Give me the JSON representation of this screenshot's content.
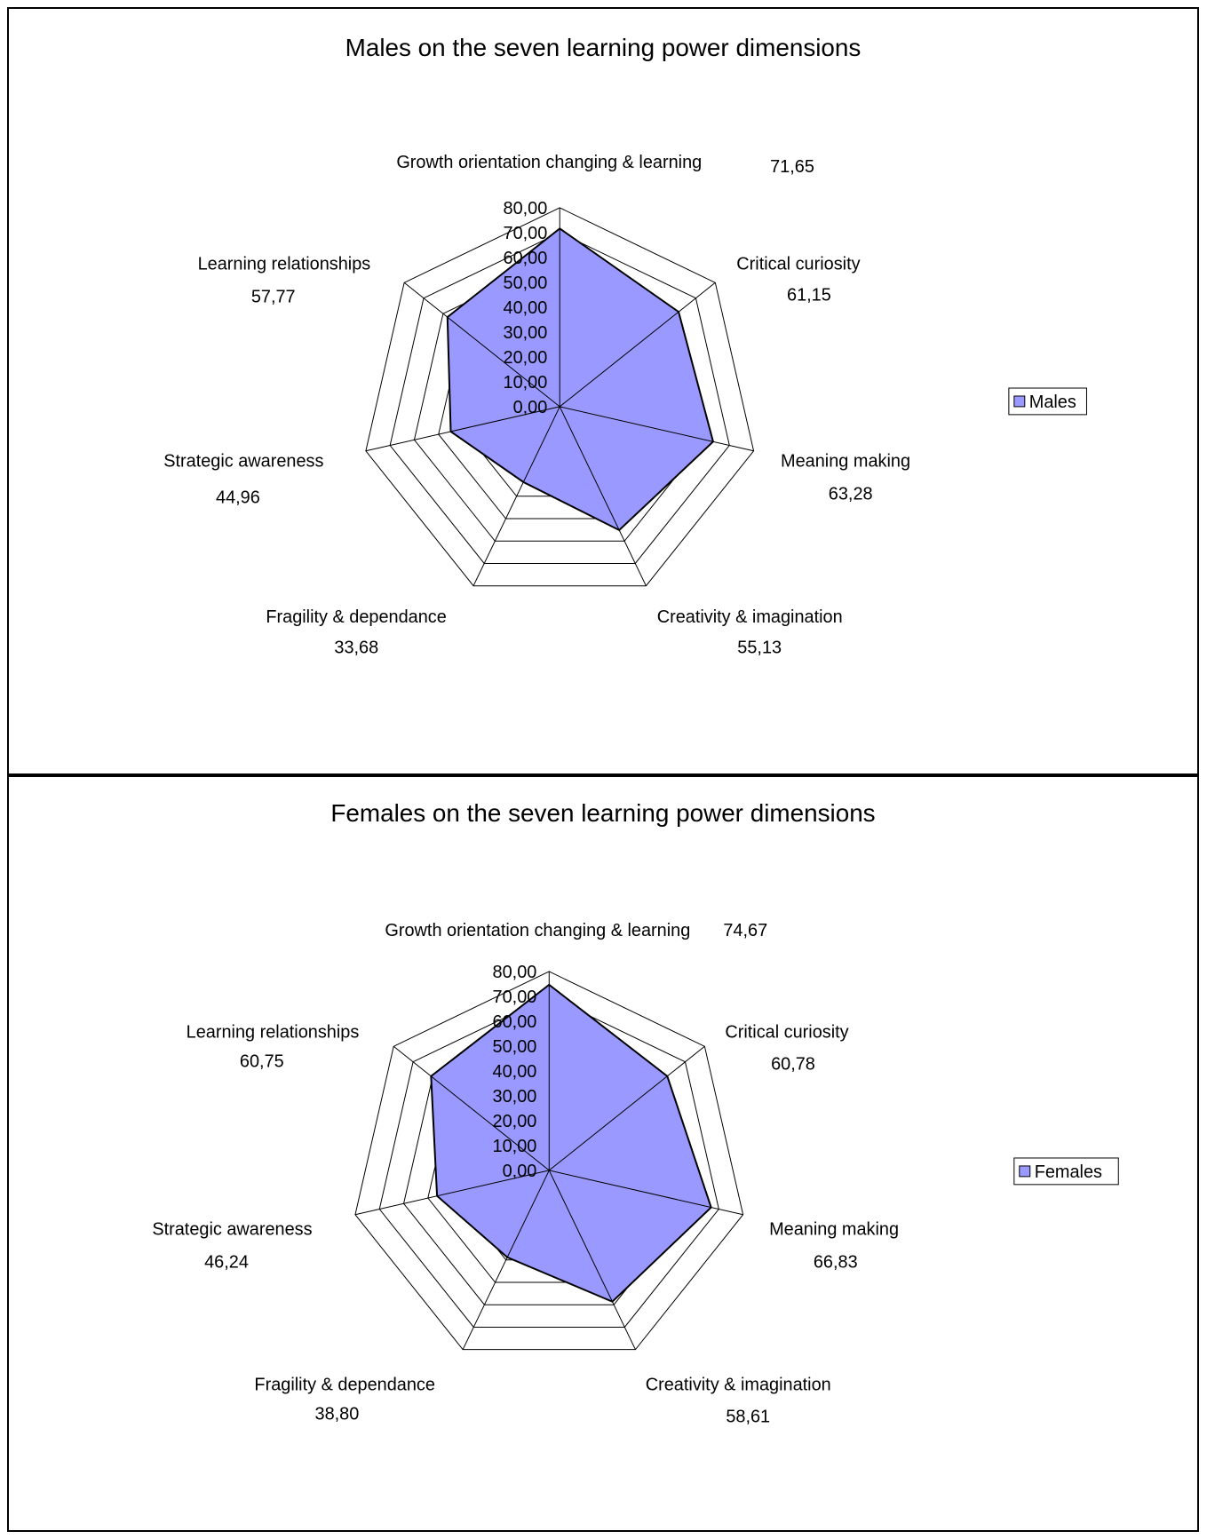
{
  "chart_data": [
    {
      "type": "radar",
      "title": "Males on the seven learning power dimensions",
      "categories": [
        "Growth orientation changing & learning",
        "Critical curiosity",
        "Meaning making",
        "Creativity & imagination",
        "Fragility & dependance",
        "Strategic awareness",
        "Learning relationships"
      ],
      "series": [
        {
          "name": "Males",
          "values": [
            71.65,
            61.15,
            63.28,
            55.13,
            33.68,
            44.96,
            57.77
          ],
          "color": "#9999ff"
        }
      ],
      "value_labels": [
        "71,65",
        "61,15",
        "63,28",
        "55,13",
        "33,68",
        "44,96",
        "57,77"
      ],
      "axis_ticks": [
        "0,00",
        "10,00",
        "20,00",
        "30,00",
        "40,00",
        "50,00",
        "60,00",
        "70,00",
        "80,00"
      ],
      "rlim": [
        0,
        80
      ],
      "legend": "right"
    },
    {
      "type": "radar",
      "title": "Females on the seven learning power dimensions",
      "categories": [
        "Growth orientation changing & learning",
        "Critical curiosity",
        "Meaning making",
        "Creativity & imagination",
        "Fragility & dependance",
        "Strategic awareness",
        "Learning relationships"
      ],
      "series": [
        {
          "name": "Females",
          "values": [
            74.67,
            60.78,
            66.83,
            58.61,
            38.8,
            46.24,
            60.75
          ],
          "color": "#9999ff"
        }
      ],
      "value_labels": [
        "74,67",
        "60,78",
        "66,83",
        "58,61",
        "38,80",
        "46,24",
        "60,75"
      ],
      "axis_ticks": [
        "0,00",
        "10,00",
        "20,00",
        "30,00",
        "40,00",
        "50,00",
        "60,00",
        "70,00",
        "80,00"
      ],
      "rlim": [
        0,
        80
      ],
      "legend": "right"
    }
  ]
}
